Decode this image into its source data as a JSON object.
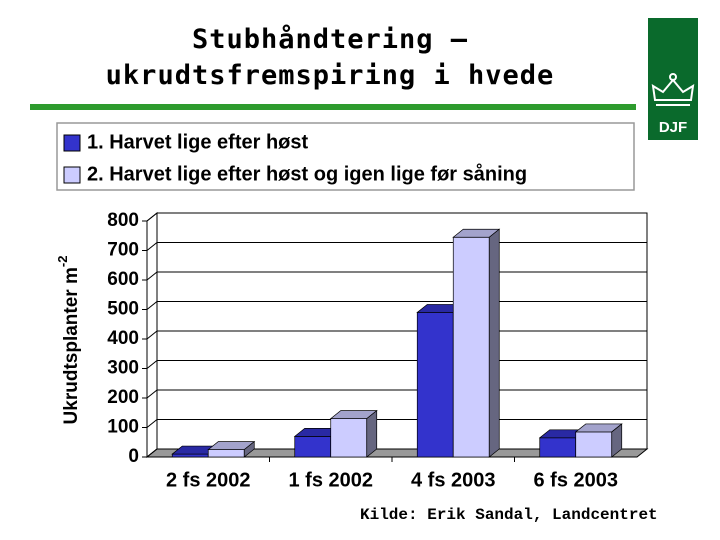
{
  "title": [
    "Stubhåndtering –",
    "ukrudtsfremspiring i hvede"
  ],
  "logo_text": "DJF",
  "source": "Kilde: Erik Sandal, Landcentret",
  "chart_data": {
    "type": "bar3d",
    "ylabel": "Ukrudtsplanter m",
    "ylabel_exponent": "-2",
    "categories": [
      "2 fs 2002",
      "1 fs 2002",
      "4 fs 2003",
      "6 fs 2003"
    ],
    "series": [
      {
        "name": "1. Harvet lige efter høst",
        "color": "#3333cc",
        "values": [
          10,
          70,
          490,
          65
        ]
      },
      {
        "name": "2. Harvet lige efter høst og igen lige før såning",
        "color": "#ccccff",
        "values": [
          25,
          130,
          745,
          85
        ]
      }
    ],
    "ylim": [
      0,
      800
    ],
    "yticks": [
      0,
      100,
      200,
      300,
      400,
      500,
      600,
      700,
      800
    ],
    "grid": true,
    "legend": "top"
  }
}
